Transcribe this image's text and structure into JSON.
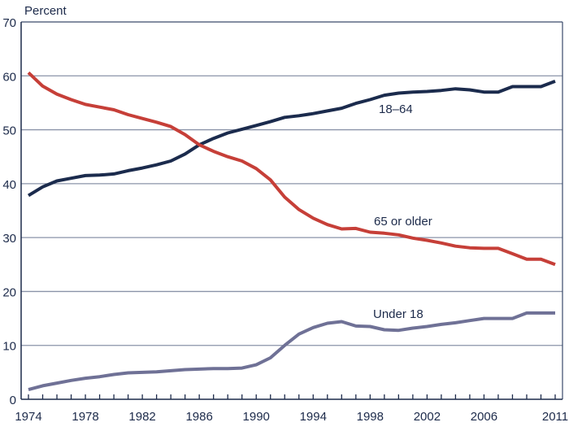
{
  "chart_data": {
    "type": "line",
    "title": "",
    "ylabel": "Percent",
    "xlabel": "",
    "ylim": [
      0,
      70
    ],
    "xlim": [
      1974,
      2011
    ],
    "yticks": [
      0,
      10,
      20,
      30,
      40,
      50,
      60,
      70
    ],
    "xtick_labels": [
      "1974",
      "1978",
      "1982",
      "1986",
      "1990",
      "1994",
      "1998",
      "2002",
      "2006",
      "2011"
    ],
    "grid": true,
    "x": [
      1974,
      1975,
      1976,
      1977,
      1978,
      1979,
      1980,
      1981,
      1982,
      1983,
      1984,
      1985,
      1986,
      1987,
      1988,
      1989,
      1990,
      1991,
      1992,
      1993,
      1994,
      1995,
      1996,
      1997,
      1998,
      1999,
      2000,
      2001,
      2002,
      2003,
      2004,
      2005,
      2006,
      2007,
      2008,
      2009,
      2010,
      2011
    ],
    "series": [
      {
        "name": "18–64",
        "color": "#1b2b4d",
        "values": [
          37.8,
          39.4,
          40.5,
          41.0,
          41.5,
          41.6,
          41.8,
          42.4,
          42.9,
          43.5,
          44.2,
          45.5,
          47.2,
          48.4,
          49.4,
          50.1,
          50.8,
          51.5,
          52.3,
          52.6,
          53.0,
          53.5,
          54.0,
          54.9,
          55.6,
          56.4,
          56.8,
          57.0,
          57.1,
          57.3,
          57.6,
          57.4,
          57.0,
          57.0,
          58.0,
          58.0,
          58.0,
          59.0
        ]
      },
      {
        "name": "65 or older",
        "color": "#c63f38",
        "values": [
          60.6,
          58.1,
          56.6,
          55.6,
          54.7,
          54.2,
          53.7,
          52.8,
          52.1,
          51.4,
          50.6,
          49.1,
          47.2,
          46.0,
          45.0,
          44.2,
          42.8,
          40.7,
          37.5,
          35.2,
          33.6,
          32.4,
          31.6,
          31.7,
          31.0,
          30.8,
          30.5,
          29.9,
          29.5,
          29.0,
          28.4,
          28.1,
          28.0,
          28.0,
          27.0,
          26.0,
          26.0,
          25.0
        ]
      },
      {
        "name": "Under 18",
        "color": "#6f7196",
        "values": [
          1.8,
          2.5,
          3.0,
          3.5,
          3.9,
          4.2,
          4.6,
          4.9,
          5.0,
          5.1,
          5.3,
          5.5,
          5.6,
          5.7,
          5.7,
          5.8,
          6.4,
          7.7,
          10.0,
          12.1,
          13.3,
          14.1,
          14.4,
          13.6,
          13.5,
          12.9,
          12.8,
          13.2,
          13.5,
          13.9,
          14.2,
          14.6,
          15.0,
          15.0,
          15.0,
          16.0,
          16.0,
          16.0
        ]
      }
    ],
    "annotations": [
      "18–64",
      "65 or older",
      "Under 18"
    ]
  }
}
